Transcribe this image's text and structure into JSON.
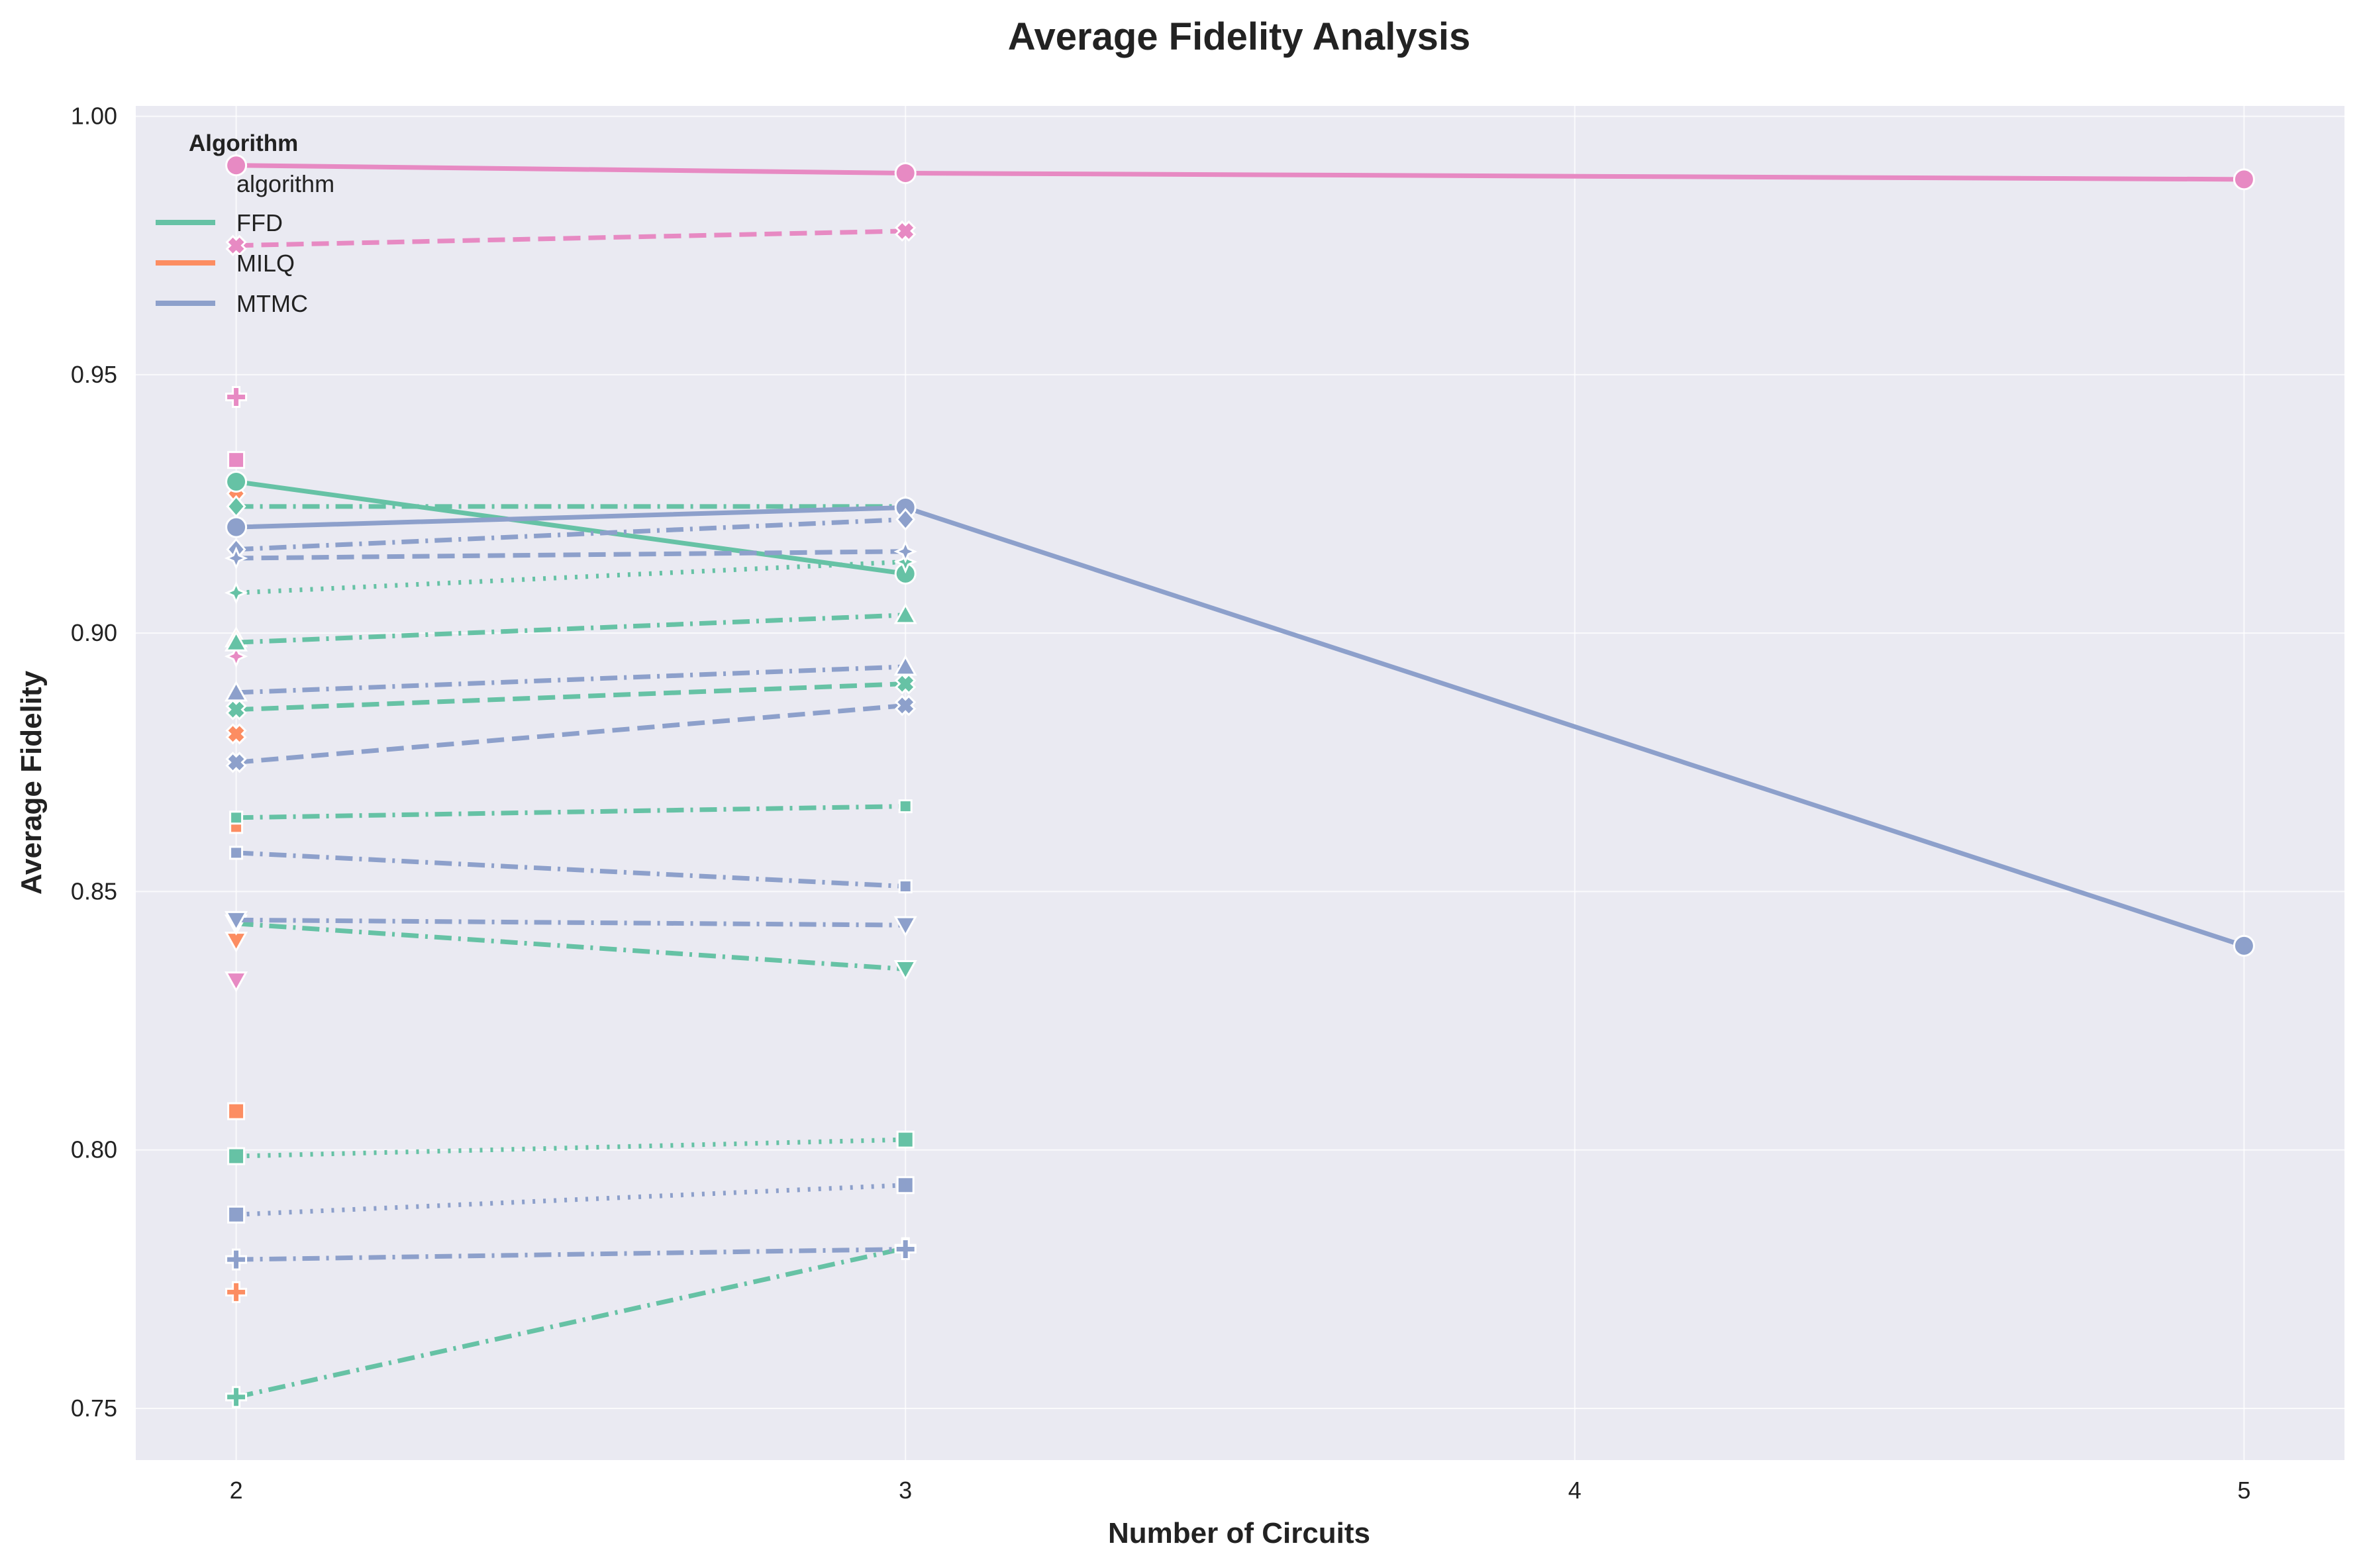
{
  "chart_data": {
    "type": "line",
    "title": "Average Fidelity Analysis",
    "xlabel": "Number of Circuits",
    "ylabel": "Average Fidelity",
    "xlim": [
      1.85,
      5.15
    ],
    "ylim": [
      0.74,
      1.002
    ],
    "xticks": [
      "2",
      "3",
      "4",
      "5"
    ],
    "yticks": [
      "0.75",
      "0.80",
      "0.85",
      "0.90",
      "0.95",
      "1.00"
    ],
    "grid": true,
    "background": "#EAEAF2",
    "legend": {
      "placement": "top-left",
      "title": "Algorithm",
      "subtitle": "algorithm",
      "entries": [
        {
          "label": "FFD",
          "color": "#66C2A5"
        },
        {
          "label": "MILQ",
          "color": "#FC8D62"
        },
        {
          "label": "MTMC",
          "color": "#8DA0CB"
        }
      ]
    },
    "colors": {
      "FFD": "#66C2A5",
      "MILQ": "#FC8D62",
      "MTMC": "#8DA0CB",
      "PINK": "#E78AC3"
    },
    "series": [
      {
        "color": "#E78AC3",
        "dash": "solid",
        "marker": "circle",
        "x": [
          2,
          3,
          5
        ],
        "y": [
          0.9905,
          0.989,
          0.9878
        ]
      },
      {
        "color": "#E78AC3",
        "dash": "dashed",
        "marker": "x",
        "x": [
          2,
          3
        ],
        "y": [
          0.975,
          0.9778
        ]
      },
      {
        "color": "#E78AC3",
        "dash": "solid",
        "marker": "plus",
        "x": [
          2
        ],
        "y": [
          0.9457
        ]
      },
      {
        "color": "#E78AC3",
        "dash": "solid",
        "marker": "square",
        "x": [
          2
        ],
        "y": [
          0.9335
        ]
      },
      {
        "color": "#E78AC3",
        "dash": "solid",
        "marker": "diamond",
        "x": [
          2
        ],
        "y": [
          0.9245
        ]
      },
      {
        "color": "#E78AC3",
        "dash": "solid",
        "marker": "star",
        "x": [
          2
        ],
        "y": [
          0.8955
        ]
      },
      {
        "color": "#E78AC3",
        "dash": "solid",
        "marker": "tri-down",
        "x": [
          2
        ],
        "y": [
          0.8328
        ]
      },
      {
        "color": "#E78AC3",
        "dash": "solid",
        "marker": "small-square",
        "x": [
          2
        ],
        "y": [
          0.864
        ]
      },
      {
        "color": "#FC8D62",
        "dash": "solid",
        "marker": "diamond",
        "x": [
          2
        ],
        "y": [
          0.927
        ]
      },
      {
        "color": "#FC8D62",
        "dash": "solid",
        "marker": "tri-up",
        "x": [
          2
        ],
        "y": [
          0.899
        ]
      },
      {
        "color": "#FC8D62",
        "dash": "solid",
        "marker": "x",
        "x": [
          2
        ],
        "y": [
          0.8805
        ]
      },
      {
        "color": "#FC8D62",
        "dash": "solid",
        "marker": "small-square",
        "x": [
          2
        ],
        "y": [
          0.8625
        ]
      },
      {
        "color": "#FC8D62",
        "dash": "solid",
        "marker": "tri-down",
        "x": [
          2
        ],
        "y": [
          0.8405
        ]
      },
      {
        "color": "#FC8D62",
        "dash": "solid",
        "marker": "square",
        "x": [
          2
        ],
        "y": [
          0.8075
        ]
      },
      {
        "color": "#FC8D62",
        "dash": "solid",
        "marker": "plus",
        "x": [
          2
        ],
        "y": [
          0.7725
        ]
      },
      {
        "color": "#66C2A5",
        "dash": "solid",
        "marker": "circle",
        "x": [
          2,
          3
        ],
        "y": [
          0.9293,
          0.9115
        ]
      },
      {
        "color": "#66C2A5",
        "dash": "dashdot",
        "marker": "diamond",
        "x": [
          2,
          3
        ],
        "y": [
          0.9245,
          0.9245
        ]
      },
      {
        "color": "#66C2A5",
        "dash": "dotted",
        "marker": "star",
        "x": [
          2,
          3
        ],
        "y": [
          0.9078,
          0.9138
        ]
      },
      {
        "color": "#66C2A5",
        "dash": "dashdot",
        "marker": "tri-up",
        "x": [
          2,
          3
        ],
        "y": [
          0.8982,
          0.9035
        ]
      },
      {
        "color": "#66C2A5",
        "dash": "dashed",
        "marker": "x",
        "x": [
          2,
          3
        ],
        "y": [
          0.8852,
          0.8902
        ]
      },
      {
        "color": "#66C2A5",
        "dash": "dashdot",
        "marker": "small-square",
        "x": [
          2,
          3
        ],
        "y": [
          0.8643,
          0.8665
        ]
      },
      {
        "color": "#66C2A5",
        "dash": "dashdot",
        "marker": "tri-down",
        "x": [
          2,
          3
        ],
        "y": [
          0.8438,
          0.835
        ]
      },
      {
        "color": "#66C2A5",
        "dash": "dotted",
        "marker": "square",
        "x": [
          2,
          3
        ],
        "y": [
          0.7988,
          0.802
        ]
      },
      {
        "color": "#66C2A5",
        "dash": "dashdot",
        "marker": "plus",
        "x": [
          2,
          3
        ],
        "y": [
          0.7522,
          0.781
        ]
      },
      {
        "color": "#8DA0CB",
        "dash": "solid",
        "marker": "circle",
        "x": [
          2,
          3,
          5
        ],
        "y": [
          0.9205,
          0.9243,
          0.8395
        ]
      },
      {
        "color": "#8DA0CB",
        "dash": "dashdot",
        "marker": "diamond",
        "x": [
          2,
          3
        ],
        "y": [
          0.9162,
          0.922
        ]
      },
      {
        "color": "#8DA0CB",
        "dash": "dashed",
        "marker": "star",
        "x": [
          2,
          3
        ],
        "y": [
          0.9145,
          0.9158
        ]
      },
      {
        "color": "#8DA0CB",
        "dash": "dashdot",
        "marker": "tri-up",
        "x": [
          2,
          3
        ],
        "y": [
          0.8885,
          0.8935
        ]
      },
      {
        "color": "#8DA0CB",
        "dash": "dashed",
        "marker": "x",
        "x": [
          2,
          3
        ],
        "y": [
          0.875,
          0.886
        ]
      },
      {
        "color": "#8DA0CB",
        "dash": "dashdot",
        "marker": "small-square",
        "x": [
          2,
          3
        ],
        "y": [
          0.8575,
          0.851
        ]
      },
      {
        "color": "#8DA0CB",
        "dash": "dashdot",
        "marker": "tri-down",
        "x": [
          2,
          3
        ],
        "y": [
          0.8445,
          0.8435
        ]
      },
      {
        "color": "#8DA0CB",
        "dash": "dotted",
        "marker": "square",
        "x": [
          2,
          3
        ],
        "y": [
          0.7875,
          0.7932
        ]
      },
      {
        "color": "#8DA0CB",
        "dash": "dashdot",
        "marker": "plus",
        "x": [
          2,
          3
        ],
        "y": [
          0.7788,
          0.7808
        ]
      }
    ]
  }
}
